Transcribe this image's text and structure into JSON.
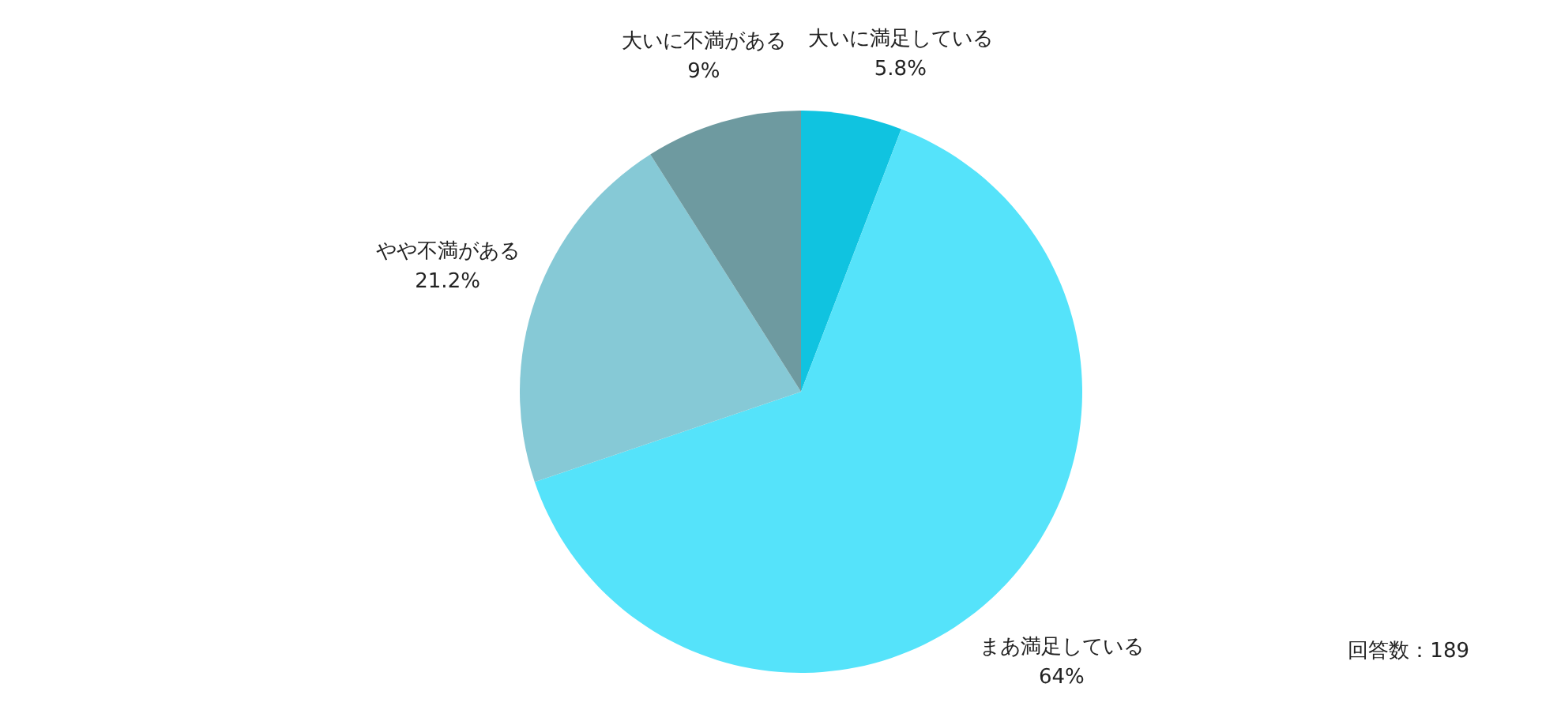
{
  "chart_data": {
    "type": "pie",
    "categories": [
      "大いに満足している",
      "まあ満足している",
      "やや不満がある",
      "大いに不満がある"
    ],
    "values": [
      5.8,
      64,
      21.2,
      9
    ],
    "value_labels": [
      "5.8%",
      "64%",
      "21.2%",
      "9%"
    ],
    "colors": [
      "#10c3e0",
      "#55e3fa",
      "#86c9d6",
      "#6e9aa0"
    ],
    "legend": false,
    "annotations": [
      "回答数：189"
    ]
  }
}
